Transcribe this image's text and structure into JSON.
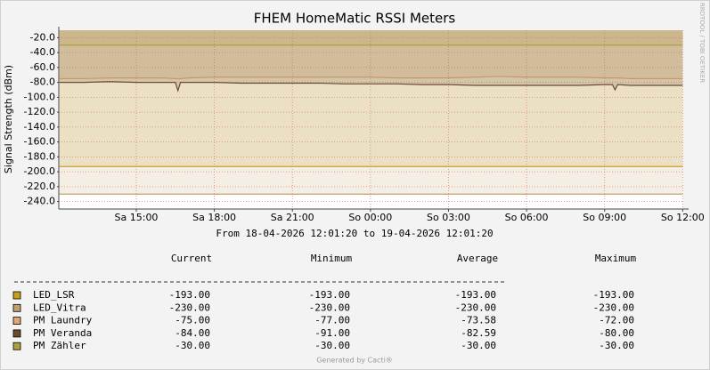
{
  "chart_data": {
    "type": "area",
    "title": "FHEM HomeMatic RSSI Meters",
    "ylabel": "Signal Strength (dBm)",
    "subtitle": "From 18-04-2026 12:01:20 to 19-04-2026 12:01:20",
    "side_text": "RRDTOOL / TOBI OETIKER",
    "footer": "Generated by Cacti®",
    "stat_columns": [
      "Current",
      "Minimum",
      "Average",
      "Maximum"
    ],
    "ylim": [
      -250,
      -10
    ],
    "yticks": [
      {
        "value": -20,
        "label": "-20.0"
      },
      {
        "value": -40,
        "label": "-40.0"
      },
      {
        "value": -60,
        "label": "-60.0"
      },
      {
        "value": -80,
        "label": "-80.0"
      },
      {
        "value": -100,
        "label": "-100.0"
      },
      {
        "value": -120,
        "label": "-120.0"
      },
      {
        "value": -140,
        "label": "-140.0"
      },
      {
        "value": -160,
        "label": "-160.0"
      },
      {
        "value": -180,
        "label": "-180.0"
      },
      {
        "value": -200,
        "label": "-200.0"
      },
      {
        "value": -220,
        "label": "-220.0"
      },
      {
        "value": -240,
        "label": "-240.0"
      }
    ],
    "xlim": [
      12.022,
      36.022
    ],
    "xticks": [
      {
        "value": 15,
        "label": "Sa 15:00"
      },
      {
        "value": 18,
        "label": "Sa 18:00"
      },
      {
        "value": 21,
        "label": "Sa 21:00"
      },
      {
        "value": 24,
        "label": "So 00:00"
      },
      {
        "value": 27,
        "label": "So 03:00"
      },
      {
        "value": 30,
        "label": "So 06:00"
      },
      {
        "value": 33,
        "label": "So 09:00"
      },
      {
        "value": 36,
        "label": "So 12:00"
      }
    ],
    "grid": true,
    "x": [
      12.05,
      13,
      14,
      15,
      16,
      16.5,
      16.6,
      16.7,
      17,
      18,
      19,
      20,
      21,
      22,
      23,
      24,
      25,
      26,
      27,
      28,
      29,
      30,
      31,
      32,
      33,
      33.3,
      33.4,
      33.5,
      34,
      35,
      36
    ],
    "series": [
      {
        "name": "LED_LSR",
        "color": "#c8a020",
        "values": [
          -193,
          -193,
          -193,
          -193,
          -193,
          -193,
          -193,
          -193,
          -193,
          -193,
          -193,
          -193,
          -193,
          -193,
          -193,
          -193,
          -193,
          -193,
          -193,
          -193,
          -193,
          -193,
          -193,
          -193,
          -193,
          -193,
          -193,
          -193,
          -193,
          -193,
          -193
        ],
        "stats": {
          "values": [
            -193,
            -193,
            -193,
            -193
          ],
          "value_labels": [
            "-193.00",
            "-193.00",
            "-193.00",
            "-193.00"
          ]
        }
      },
      {
        "name": "LED_Vitra",
        "color": "#c0a070",
        "values": [
          -230,
          -230,
          -230,
          -230,
          -230,
          -230,
          -230,
          -230,
          -230,
          -230,
          -230,
          -230,
          -230,
          -230,
          -230,
          -230,
          -230,
          -230,
          -230,
          -230,
          -230,
          -230,
          -230,
          -230,
          -230,
          -230,
          -230,
          -230,
          -230,
          -230,
          -230
        ],
        "stats": {
          "values": [
            -230,
            -230,
            -230,
            -230
          ],
          "value_labels": [
            "-230.00",
            "-230.00",
            "-230.00",
            "-230.00"
          ]
        }
      },
      {
        "name": "PM Laundry",
        "color": "#e0a870",
        "values": [
          -75,
          -75,
          -74,
          -74,
          -74,
          -75,
          -75,
          -75,
          -74,
          -73,
          -73,
          -73,
          -73,
          -73,
          -73,
          -73,
          -74,
          -74,
          -74,
          -73,
          -72,
          -73,
          -73,
          -73,
          -74,
          -74,
          -74,
          -74,
          -75,
          -75,
          -75
        ],
        "stats": {
          "values": [
            -75,
            -77,
            -73.58,
            -72
          ],
          "value_labels": [
            "-75.00",
            "-77.00",
            "-73.58",
            "-72.00"
          ]
        }
      },
      {
        "name": "PM Veranda",
        "color": "#6b4c30",
        "values": [
          -80,
          -80,
          -79,
          -80,
          -80,
          -80,
          -91,
          -80,
          -80,
          -80,
          -81,
          -81,
          -81,
          -81,
          -82,
          -82,
          -82,
          -83,
          -83,
          -84,
          -84,
          -84,
          -84,
          -84,
          -83,
          -83,
          -90,
          -83,
          -84,
          -84,
          -84
        ],
        "stats": {
          "values": [
            -84,
            -91,
            -82.59,
            -80
          ],
          "value_labels": [
            "-84.00",
            "-91.00",
            "-82.59",
            "-80.00"
          ]
        }
      },
      {
        "name": "PM Zähler",
        "color": "#b0a040",
        "values": [
          -30,
          -30,
          -30,
          -30,
          -30,
          -30,
          -30,
          -30,
          -30,
          -30,
          -30,
          -30,
          -30,
          -30,
          -30,
          -30,
          -30,
          -30,
          -30,
          -30,
          -30,
          -30,
          -30,
          -30,
          -30,
          -30,
          -30,
          -30,
          -30,
          -30,
          -30
        ],
        "stats": {
          "values": [
            -30,
            -30,
            -30,
            -30
          ],
          "value_labels": [
            "-30.00",
            "-30.00",
            "-30.00",
            "-30.00"
          ]
        }
      }
    ]
  }
}
